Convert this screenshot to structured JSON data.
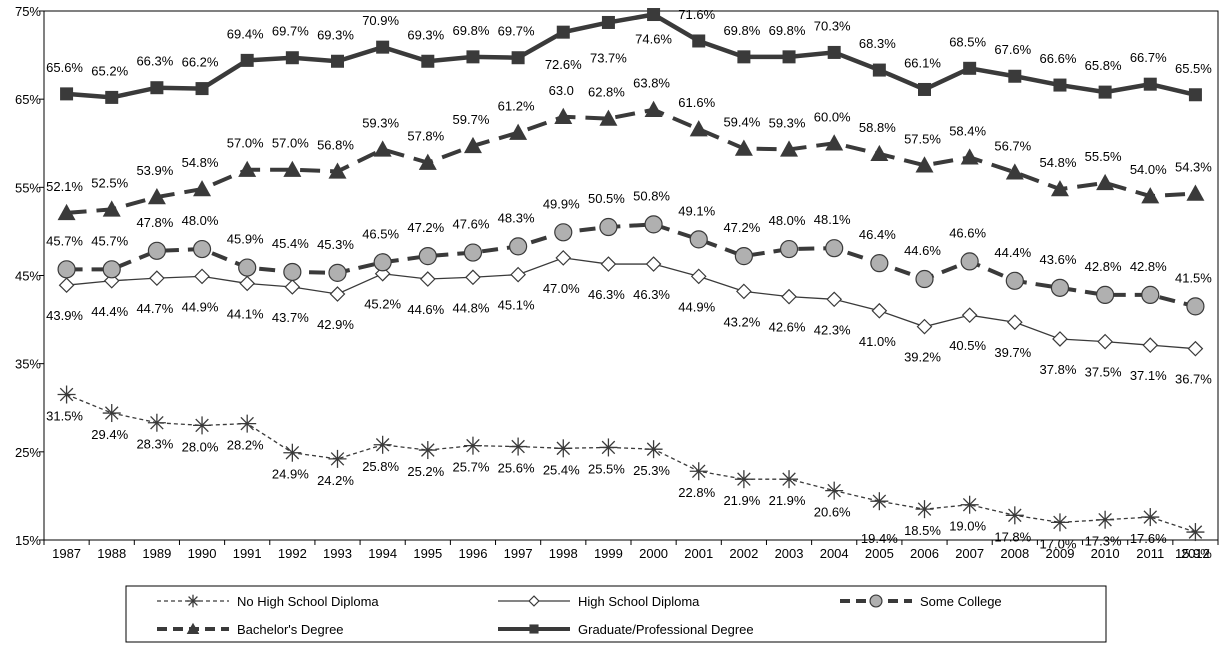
{
  "chart_data": {
    "type": "line",
    "title": "",
    "xlabel": "",
    "ylabel": "",
    "ylim": [
      15,
      75
    ],
    "y_ticks": [
      "15%",
      "25%",
      "35%",
      "45%",
      "55%",
      "65%",
      "75%"
    ],
    "categories": [
      "1987",
      "1988",
      "1989",
      "1990",
      "1991",
      "1992",
      "1993",
      "1994",
      "1995",
      "1996",
      "1997",
      "1998",
      "1999",
      "2000",
      "2001",
      "2002",
      "2003",
      "2004",
      "2005",
      "2006",
      "2007",
      "2008",
      "2009",
      "2010",
      "2011",
      "2012"
    ],
    "legend_position": "bottom",
    "grid": false,
    "series": [
      {
        "name": "No High School Diploma",
        "key": "nohs",
        "color": "#404040",
        "values": [
          31.5,
          29.4,
          28.3,
          28.0,
          28.2,
          24.9,
          24.2,
          25.8,
          25.2,
          25.7,
          25.6,
          25.4,
          25.5,
          25.3,
          22.8,
          21.9,
          21.9,
          20.6,
          19.4,
          18.5,
          19.0,
          17.8,
          17.0,
          17.3,
          17.6,
          15.9
        ],
        "labels": [
          "31.5%",
          "29.4%",
          "28.3%",
          "28.0%",
          "28.2%",
          "24.9%",
          "24.2%",
          "25.8%",
          "25.2%",
          "25.7%",
          "25.6%",
          "25.4%",
          "25.5%",
          "25.3%",
          "22.8%",
          "21.9%",
          "21.9%",
          "20.6%",
          "19.4%",
          "18.5%",
          "19.0%",
          "17.8%",
          "17.0%",
          "17.3%",
          "17.6%",
          "15.9%"
        ]
      },
      {
        "name": "High School Diploma",
        "key": "hs",
        "color": "#404040",
        "values": [
          43.9,
          44.4,
          44.7,
          44.9,
          44.1,
          43.7,
          42.9,
          45.2,
          44.6,
          44.8,
          45.1,
          47.0,
          46.3,
          46.3,
          44.9,
          43.2,
          42.6,
          42.3,
          41.0,
          39.2,
          40.5,
          39.7,
          37.8,
          37.5,
          37.1,
          36.7
        ],
        "labels": [
          "43.9%",
          "44.4%",
          "44.7%",
          "44.9%",
          "44.1%",
          "43.7%",
          "42.9%",
          "45.2%",
          "44.6%",
          "44.8%",
          "45.1%",
          "47.0%",
          "46.3%",
          "46.3%",
          "44.9%",
          "43.2%",
          "42.6%",
          "42.3%",
          "41.0%",
          "39.2%",
          "40.5%",
          "39.7%",
          "37.8%",
          "37.5%",
          "37.1%",
          "36.7%"
        ]
      },
      {
        "name": "Some College",
        "key": "sc",
        "color": "#404040",
        "marker_fill": "#b0b0b0",
        "values": [
          45.7,
          45.7,
          47.8,
          48.0,
          45.9,
          45.4,
          45.3,
          46.5,
          47.2,
          47.6,
          48.3,
          49.9,
          50.5,
          50.8,
          49.1,
          47.2,
          48.0,
          48.1,
          46.4,
          44.6,
          46.6,
          44.4,
          43.6,
          42.8,
          42.8,
          41.5
        ],
        "labels": [
          "45.7%",
          "45.7%",
          "47.8%",
          "48.0%",
          "45.9%",
          "45.4%",
          "45.3%",
          "46.5%",
          "47.2%",
          "47.6%",
          "48.3%",
          "49.9%",
          "50.5%",
          "50.8%",
          "49.1%",
          "47.2%",
          "48.0%",
          "48.1%",
          "46.4%",
          "44.6%",
          "46.6%",
          "44.4%",
          "43.6%",
          "42.8%",
          "42.8%",
          "41.5%"
        ]
      },
      {
        "name": "Bachelor's Degree",
        "key": "ba",
        "color": "#404040",
        "values": [
          52.1,
          52.5,
          53.9,
          54.8,
          57.0,
          57.0,
          56.8,
          59.3,
          57.8,
          59.7,
          61.2,
          63.0,
          62.8,
          63.8,
          61.6,
          59.4,
          59.3,
          60.0,
          58.8,
          57.5,
          58.4,
          56.7,
          54.8,
          55.5,
          54.0,
          54.3
        ],
        "labels": [
          "52.1%",
          "52.5%",
          "53.9%",
          "54.8%",
          "57.0%",
          "57.0%",
          "56.8%",
          "59.3%",
          "57.8%",
          "59.7%",
          "61.2%",
          "63.0",
          "62.8%",
          "63.8%",
          "61.6%",
          "59.4%",
          "59.3%",
          "60.0%",
          "58.8%",
          "57.5%",
          "58.4%",
          "56.7%",
          "54.8%",
          "55.5%",
          "54.0%",
          "54.3%"
        ]
      },
      {
        "name": "Graduate/Professional Degree",
        "key": "grad",
        "color": "#404040",
        "values": [
          65.6,
          65.2,
          66.3,
          66.2,
          69.4,
          69.7,
          69.3,
          70.9,
          69.3,
          69.8,
          69.7,
          72.6,
          73.7,
          74.6,
          71.6,
          69.8,
          69.8,
          70.3,
          68.3,
          66.1,
          68.5,
          67.6,
          66.6,
          65.8,
          66.7,
          65.5
        ],
        "labels": [
          "65.6%",
          "65.2%",
          "66.3%",
          "66.2%",
          "69.4%",
          "69.7%",
          "69.3%",
          "70.9%",
          "69.3%",
          "69.8%",
          "69.7%",
          "72.6%",
          "73.7%",
          "74.6%",
          "71.6%",
          "69.8%",
          "69.8%",
          "70.3%",
          "68.3%",
          "66.1%",
          "68.5%",
          "67.6%",
          "66.6%",
          "65.8%",
          "66.7%",
          "65.5%"
        ]
      }
    ]
  }
}
